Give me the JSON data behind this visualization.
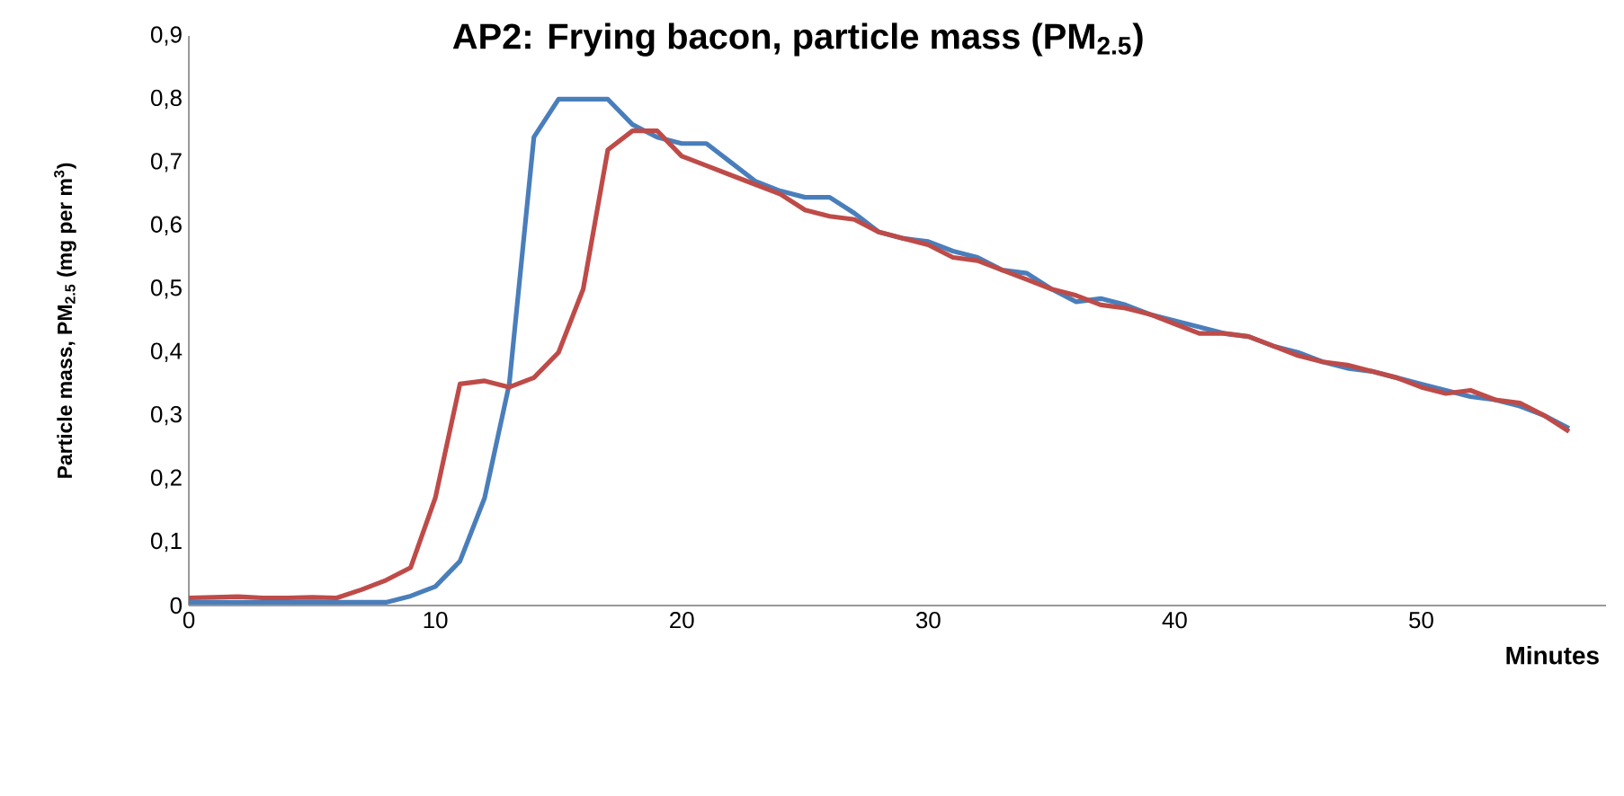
{
  "chart_data": {
    "type": "line",
    "title": "AP2: Frying bacon, particle mass (PM$_{2.5}$)",
    "xlabel": "Minutes",
    "ylabel": "Particle mass, PM$_{2.5}$ (mg per m$^{3}$)",
    "x": [
      0,
      1,
      2,
      3,
      4,
      5,
      6,
      7,
      8,
      9,
      10,
      11,
      12,
      13,
      14,
      15,
      16,
      17,
      18,
      19,
      20,
      21,
      22,
      23,
      24,
      25,
      26,
      27,
      28,
      29,
      30,
      31,
      32,
      33,
      34,
      35,
      36,
      37,
      38,
      39,
      40,
      41,
      42,
      43,
      44,
      45,
      46,
      47,
      48,
      49,
      50,
      51,
      52,
      53,
      54,
      55,
      56
    ],
    "series": [
      {
        "color": "#4a7ebb",
        "values": [
          0.005,
          0.005,
          0.005,
          0.005,
          0.005,
          0.005,
          0.005,
          0.005,
          0.005,
          0.015,
          0.03,
          0.07,
          0.17,
          0.35,
          0.74,
          0.8,
          0.8,
          0.8,
          0.76,
          0.74,
          0.73,
          0.73,
          0.7,
          0.67,
          0.655,
          0.645,
          0.645,
          0.62,
          0.59,
          0.58,
          0.575,
          0.56,
          0.55,
          0.53,
          0.525,
          0.5,
          0.48,
          0.485,
          0.475,
          0.46,
          0.45,
          0.44,
          0.43,
          0.425,
          0.41,
          0.4,
          0.385,
          0.375,
          0.37,
          0.36,
          0.35,
          0.34,
          0.33,
          0.325,
          0.315,
          0.3,
          0.28
        ]
      },
      {
        "color": "#be4b48",
        "values": [
          0.012,
          0.013,
          0.014,
          0.012,
          0.012,
          0.013,
          0.012,
          0.025,
          0.04,
          0.06,
          0.17,
          0.35,
          0.355,
          0.345,
          0.36,
          0.4,
          0.5,
          0.72,
          0.75,
          0.75,
          0.71,
          0.695,
          0.68,
          0.665,
          0.65,
          0.625,
          0.615,
          0.61,
          0.59,
          0.58,
          0.57,
          0.55,
          0.545,
          0.53,
          0.515,
          0.5,
          0.49,
          0.475,
          0.47,
          0.46,
          0.445,
          0.43,
          0.43,
          0.425,
          0.41,
          0.395,
          0.385,
          0.38,
          0.37,
          0.36,
          0.345,
          0.335,
          0.34,
          0.325,
          0.32,
          0.3,
          0.275
        ]
      }
    ],
    "xlim": [
      0,
      57.5
    ],
    "xticks": [
      0,
      10,
      20,
      30,
      40,
      50
    ],
    "ylim": [
      0,
      0.9
    ],
    "yticks": [
      0,
      {
        "value": 0.1,
        "label": "0,1"
      },
      {
        "value": 0.2,
        "label": "0,2"
      },
      {
        "value": 0.3,
        "label": "0,3"
      },
      {
        "value": 0.4,
        "label": "0,4"
      },
      {
        "value": 0.5,
        "label": "0,5"
      },
      {
        "value": 0.6,
        "label": "0,6"
      },
      {
        "value": 0.7,
        "label": "0,7"
      },
      {
        "value": 0.8,
        "label": "0,8"
      },
      {
        "value": 0.9,
        "label": "0,9"
      }
    ],
    "grid": false,
    "marker": "none",
    "line_style": "solid"
  }
}
